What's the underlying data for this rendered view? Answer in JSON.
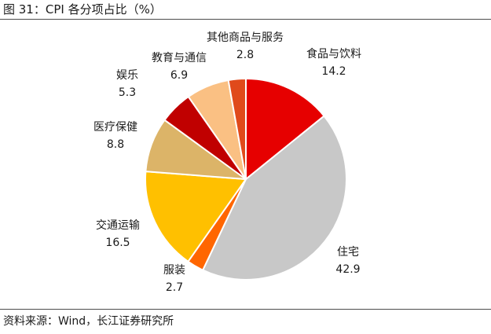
{
  "figure": {
    "title": "图 31：CPI 各分项占比（%）",
    "source": "资料来源：Wind，长江证券研究所"
  },
  "chart_data": {
    "type": "pie",
    "title": "CPI 各分项占比（%）",
    "slices": [
      {
        "label": "食品与饮料",
        "value": 14.2,
        "color": "#e60000"
      },
      {
        "label": "住宅",
        "value": 42.9,
        "color": "#c8c8c8"
      },
      {
        "label": "服装",
        "value": 2.7,
        "color": "#ff6600"
      },
      {
        "label": "交通运输",
        "value": 16.5,
        "color": "#ffc000"
      },
      {
        "label": "医疗保健",
        "value": 8.8,
        "color": "#dcb468"
      },
      {
        "label": "娱乐",
        "value": 5.3,
        "color": "#c00000"
      },
      {
        "label": "教育与通信",
        "value": 6.9,
        "color": "#fac083"
      },
      {
        "label": "其他商品与服务",
        "value": 2.8,
        "color": "#e04a1b"
      }
    ],
    "start_angle": "12 o'clock",
    "direction": "clockwise",
    "legend": "none"
  }
}
